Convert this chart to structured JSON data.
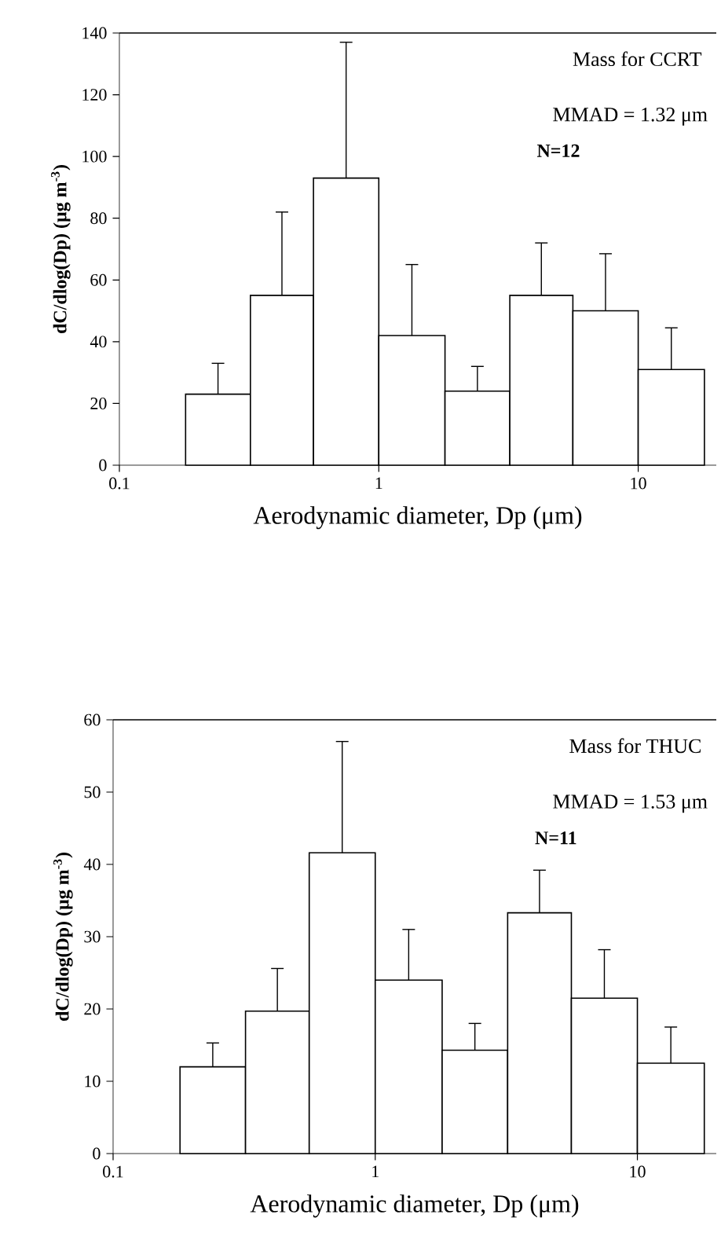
{
  "chart_data": [
    {
      "type": "histogram",
      "title": "Mass for CCRT",
      "subtitle": "MMAD = 1.32 μm",
      "annotations": [
        "N=12"
      ],
      "xlabel": "Aerodynamic diameter, Dp (μm)",
      "ylabel": "dC/dlog(Dp) (μg m$^{-3}$)",
      "log": "x",
      "color": "#000000",
      "bins": [
        0.18,
        0.32,
        0.56,
        1.0,
        1.8,
        3.2,
        5.6,
        10,
        18
      ],
      "values": [
        23,
        55,
        93,
        42,
        24,
        55,
        50,
        31
      ],
      "errors": [
        [
          23,
          33
        ],
        [
          55,
          82
        ],
        [
          93,
          137
        ],
        [
          42,
          65
        ],
        [
          24,
          32
        ],
        [
          55,
          72
        ],
        [
          50,
          68.5
        ],
        [
          31,
          44.5
        ]
      ],
      "xlim": [
        0.1,
        20
      ],
      "xticks": [
        0.1,
        1,
        10
      ],
      "ylim": [
        0,
        140
      ],
      "yticks": [
        0,
        20,
        40,
        60,
        80,
        100,
        120,
        140
      ]
    },
    {
      "type": "histogram",
      "title": "Mass for THUC",
      "subtitle": "MMAD = 1.53 μm",
      "annotations": [
        "N=11"
      ],
      "xlabel": "Aerodynamic diameter, Dp (μm)",
      "ylabel": "dC/dlog(Dp) (μg m$^{-3}$)",
      "log": "x",
      "color": "#000000",
      "bins": [
        0.18,
        0.32,
        0.56,
        1.0,
        1.8,
        3.2,
        5.6,
        10,
        18
      ],
      "values": [
        12,
        19.7,
        41.6,
        24,
        14.3,
        33.3,
        21.5,
        12.5
      ],
      "errors": [
        [
          12,
          15.3
        ],
        [
          19.7,
          25.6
        ],
        [
          41.6,
          57
        ],
        [
          24,
          31
        ],
        [
          14.3,
          18
        ],
        [
          33.3,
          39.2
        ],
        [
          21.5,
          28.2
        ],
        [
          12.5,
          17.5
        ]
      ],
      "xlim": [
        0.1,
        20
      ],
      "xticks": [
        0.1,
        1,
        10
      ],
      "ylim": [
        0,
        60
      ],
      "yticks": [
        0,
        10,
        20,
        30,
        40,
        50,
        60
      ]
    }
  ]
}
